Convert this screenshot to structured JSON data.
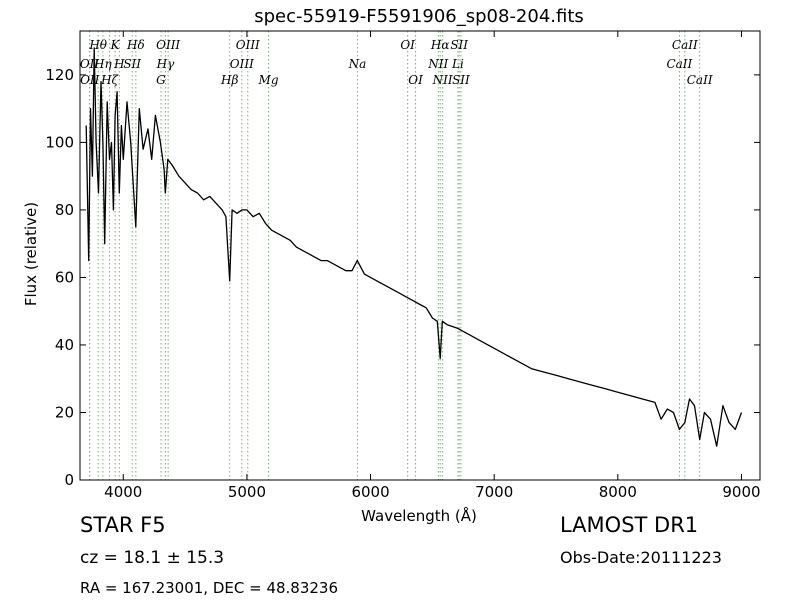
{
  "chart_data": {
    "type": "line",
    "title": "spec-55919-F5591906_sp08-204.fits",
    "xlabel": "Wavelength (Å)",
    "ylabel": "Flux (relative)",
    "xlim": [
      3650,
      9150
    ],
    "ylim": [
      0,
      133
    ],
    "xticks": [
      4000,
      5000,
      6000,
      7000,
      8000,
      9000
    ],
    "yticks": [
      0,
      20,
      40,
      60,
      80,
      100,
      120
    ],
    "grid": false,
    "series": [
      {
        "color": "#000000",
        "x": [
          3700,
          3720,
          3735,
          3750,
          3765,
          3780,
          3800,
          3820,
          3835,
          3850,
          3870,
          3889,
          3905,
          3920,
          3934,
          3950,
          3968,
          3985,
          4000,
          4030,
          4060,
          4101,
          4130,
          4160,
          4200,
          4230,
          4260,
          4300,
          4330,
          4340,
          4360,
          4400,
          4450,
          4500,
          4550,
          4600,
          4650,
          4700,
          4750,
          4800,
          4830,
          4861,
          4880,
          4920,
          4960,
          5000,
          5050,
          5100,
          5150,
          5200,
          5250,
          5300,
          5350,
          5400,
          5450,
          5500,
          5550,
          5600,
          5650,
          5700,
          5750,
          5800,
          5850,
          5893,
          5950,
          6000,
          6050,
          6100,
          6150,
          6200,
          6250,
          6300,
          6350,
          6400,
          6450,
          6500,
          6540,
          6563,
          6580,
          6620,
          6700,
          6800,
          6900,
          7000,
          7100,
          7200,
          7300,
          7400,
          7500,
          7600,
          7700,
          7800,
          7900,
          8000,
          8100,
          8200,
          8300,
          8350,
          8400,
          8450,
          8498,
          8542,
          8580,
          8620,
          8662,
          8700,
          8750,
          8800,
          8850,
          8900,
          8950,
          9000
        ],
        "y": [
          105,
          65,
          110,
          90,
          128,
          100,
          85,
          118,
          100,
          70,
          112,
          95,
          100,
          80,
          108,
          115,
          85,
          105,
          95,
          112,
          100,
          75,
          110,
          98,
          104,
          95,
          108,
          100,
          92,
          85,
          95,
          93,
          90,
          88,
          86,
          85,
          83,
          84,
          82,
          80,
          78,
          59,
          80,
          79,
          80,
          80,
          78,
          79,
          76,
          74,
          73,
          72,
          71,
          69,
          68,
          67,
          66,
          65,
          65,
          64,
          63,
          62,
          62,
          65,
          61,
          60,
          59,
          58,
          57,
          56,
          55,
          54,
          53,
          52,
          51,
          48,
          47,
          36,
          47,
          46,
          45,
          43,
          41,
          39,
          37,
          35,
          33,
          32,
          31,
          30,
          29,
          28,
          27,
          26,
          25,
          24,
          23,
          18,
          21,
          20,
          15,
          17,
          24,
          22,
          12,
          20,
          18,
          10,
          22,
          17,
          15,
          20
        ]
      }
    ],
    "lines": [
      {
        "label": "OII",
        "x": 3727,
        "color": "#66bb66",
        "row": 1
      },
      {
        "label": "OII",
        "x": 3729,
        "color": "#66bb66",
        "row": 2
      },
      {
        "label": "Hθ",
        "x": 3797,
        "color": "#66bb66",
        "row": 0
      },
      {
        "label": "Hη",
        "x": 3835,
        "color": "#66bb66",
        "row": 1
      },
      {
        "label": "Hζ",
        "x": 3889,
        "color": "#66bb66",
        "row": 2
      },
      {
        "label": "K",
        "x": 3934,
        "color": "#66bb66",
        "row": 0
      },
      {
        "label": "H",
        "x": 3968,
        "color": "#66bb66",
        "row": 1
      },
      {
        "label": "Hδ",
        "x": 4102,
        "color": "#66bb66",
        "row": 0
      },
      {
        "label": "SII",
        "x": 4072,
        "color": "#66bb66",
        "row": 1
      },
      {
        "label": "OIII",
        "x": 4363,
        "color": "#66bb66",
        "row": 0
      },
      {
        "label": "Hγ",
        "x": 4341,
        "color": "#66bb66",
        "row": 1
      },
      {
        "label": "G",
        "x": 4305,
        "color": "#66bb66",
        "row": 2
      },
      {
        "label": "Hβ",
        "x": 4861,
        "color": "#66bb66",
        "row": 2
      },
      {
        "label": "OIII",
        "x": 5007,
        "color": "#66bb66",
        "row": 0
      },
      {
        "label": "OIII",
        "x": 4959,
        "color": "#66bb66",
        "row": 1
      },
      {
        "label": "Mg",
        "x": 5175,
        "color": "#66bb66",
        "row": 2
      },
      {
        "label": "Na",
        "x": 5894,
        "color": "#66bb66",
        "row": 1
      },
      {
        "label": "OI",
        "x": 6300,
        "color": "#66bb66",
        "row": 0
      },
      {
        "label": "OI",
        "x": 6364,
        "color": "#66bb66",
        "row": 2
      },
      {
        "label": "Hα",
        "x": 6563,
        "color": "#66bb66",
        "row": 0
      },
      {
        "label": "NII",
        "x": 6548,
        "color": "#66bb66",
        "row": 1
      },
      {
        "label": "NII",
        "x": 6583,
        "color": "#66bb66",
        "row": 2
      },
      {
        "label": "SII",
        "x": 6717,
        "color": "#66bb66",
        "row": 0
      },
      {
        "label": "Li",
        "x": 6707,
        "color": "#66bb66",
        "row": 1
      },
      {
        "label": "SII",
        "x": 6731,
        "color": "#66bb66",
        "row": 2
      },
      {
        "label": "CaII",
        "x": 8542,
        "color": "#66bb66",
        "row": 0
      },
      {
        "label": "CaII",
        "x": 8498,
        "color": "#66bb66",
        "row": 1
      },
      {
        "label": "CaII",
        "x": 8662,
        "color": "#66bb66",
        "row": 2
      }
    ]
  },
  "info": {
    "class_text": "STAR   F5",
    "survey": "LAMOST DR1",
    "cz_text": "cz = 18.1  ± 15.3",
    "obs_date": "Obs-Date:20111223",
    "radec": "RA = 167.23001, DEC = 48.83236"
  }
}
